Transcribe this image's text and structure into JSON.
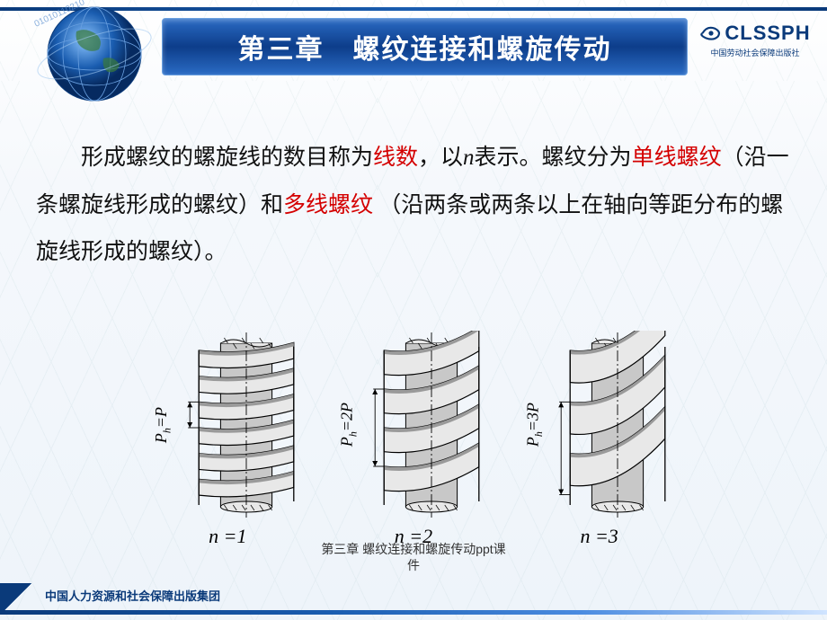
{
  "header": {
    "title": "第三章　螺纹连接和螺旋传动",
    "logo_text": "CLSSPH",
    "logo_sub": "中国劳动社会保障出版社"
  },
  "body": {
    "segments": [
      {
        "t": "形成螺纹的螺旋线的数目称为",
        "cls": ""
      },
      {
        "t": "线数",
        "cls": "red"
      },
      {
        "t": "，以",
        "cls": ""
      },
      {
        "t": "n",
        "cls": "italic"
      },
      {
        "t": "表示。螺纹分为",
        "cls": ""
      },
      {
        "t": "单线螺纹",
        "cls": "red"
      },
      {
        "t": "（沿一条螺旋线形成的螺纹）和",
        "cls": ""
      },
      {
        "t": "多线螺纹",
        "cls": "red"
      },
      {
        "t": " （沿两条或两条以上在轴向等距分布的螺旋线形成的螺纹）。",
        "cls": ""
      }
    ]
  },
  "diagram": {
    "figures": [
      {
        "pitch_html": "P<sub>h</sub>=P",
        "n_label": "n =1",
        "turns": 6,
        "lead_factor": 1
      },
      {
        "pitch_html": "P<sub>h</sub>=2P",
        "n_label": "n =2",
        "turns": 4,
        "lead_factor": 2
      },
      {
        "pitch_html": "P<sub>h</sub>=3P",
        "n_label": "n =3",
        "turns": 3,
        "lead_factor": 3
      }
    ],
    "colors": {
      "stroke": "#000000",
      "fill_light": "#e8e8e8",
      "fill_mid": "#c8c8c8",
      "fill_dark": "#9a9a9a"
    },
    "thread_width": 110,
    "thread_height": 190
  },
  "caption": {
    "line1": "第三章 螺纹连接和螺旋传动ppt课",
    "line2": "件"
  },
  "footer": {
    "text": "中国人力资源和社会保障出版集团"
  }
}
